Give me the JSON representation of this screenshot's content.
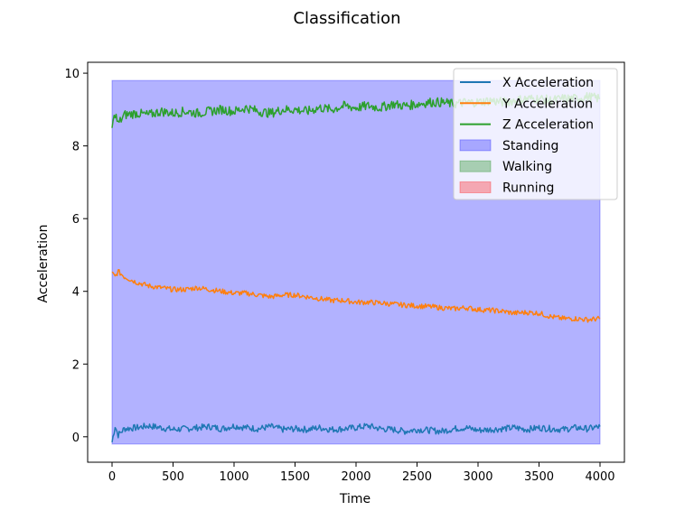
{
  "chart_data": {
    "type": "line",
    "title": "Classification",
    "xlabel": "Time",
    "ylabel": "Acceleration",
    "xlim": [
      -200,
      4200
    ],
    "ylim": [
      -0.7,
      10.3
    ],
    "x_ticks": [
      0,
      500,
      1000,
      1500,
      2000,
      2500,
      3000,
      3500,
      4000
    ],
    "y_ticks": [
      0,
      2,
      4,
      6,
      8,
      10
    ],
    "grid": false,
    "legend_position": "upper right",
    "series": [
      {
        "name": "X Acceleration",
        "color": "#1f77b4",
        "x": [
          0,
          25,
          50,
          100,
          200,
          300,
          400,
          500,
          600,
          700,
          800,
          900,
          1000,
          1100,
          1200,
          1300,
          1400,
          1500,
          1600,
          1700,
          1800,
          1900,
          2000,
          2100,
          2200,
          2300,
          2400,
          2500,
          2600,
          2700,
          2800,
          2900,
          3000,
          3100,
          3200,
          3300,
          3400,
          3500,
          3600,
          3700,
          3800,
          3900,
          4000
        ],
        "values": [
          -0.15,
          0.3,
          0.05,
          0.22,
          0.25,
          0.3,
          0.25,
          0.2,
          0.22,
          0.25,
          0.28,
          0.22,
          0.3,
          0.25,
          0.22,
          0.28,
          0.2,
          0.22,
          0.2,
          0.25,
          0.2,
          0.22,
          0.25,
          0.3,
          0.22,
          0.2,
          0.15,
          0.2,
          0.18,
          0.15,
          0.22,
          0.25,
          0.18,
          0.2,
          0.22,
          0.25,
          0.2,
          0.25,
          0.22,
          0.2,
          0.25,
          0.22,
          0.28
        ]
      },
      {
        "name": "Y Acceleration",
        "color": "#ff7f0e",
        "x": [
          0,
          25,
          50,
          100,
          200,
          300,
          400,
          500,
          600,
          700,
          800,
          900,
          1000,
          1100,
          1200,
          1300,
          1400,
          1500,
          1600,
          1700,
          1800,
          1900,
          2000,
          2100,
          2200,
          2300,
          2400,
          2500,
          2600,
          2700,
          2800,
          2900,
          3000,
          3100,
          3200,
          3300,
          3400,
          3500,
          3600,
          3700,
          3800,
          3900,
          4000
        ],
        "values": [
          4.5,
          4.4,
          4.55,
          4.4,
          4.25,
          4.15,
          4.1,
          4.05,
          4.05,
          4.1,
          4.05,
          4.0,
          3.95,
          3.95,
          3.9,
          3.85,
          3.9,
          3.9,
          3.85,
          3.8,
          3.75,
          3.75,
          3.7,
          3.7,
          3.68,
          3.65,
          3.62,
          3.6,
          3.58,
          3.55,
          3.52,
          3.55,
          3.5,
          3.48,
          3.45,
          3.4,
          3.42,
          3.4,
          3.3,
          3.25,
          3.25,
          3.22,
          3.25
        ]
      },
      {
        "name": "Z Acceleration",
        "color": "#2ca02c",
        "x": [
          0,
          25,
          50,
          100,
          200,
          300,
          400,
          500,
          600,
          700,
          800,
          900,
          1000,
          1100,
          1200,
          1300,
          1400,
          1500,
          1600,
          1700,
          1800,
          1900,
          2000,
          2100,
          2200,
          2300,
          2400,
          2500,
          2600,
          2700,
          2800,
          2900,
          3000,
          3100,
          3200,
          3300,
          3400,
          3500,
          3600,
          3700,
          3800,
          3900,
          4000
        ],
        "values": [
          8.5,
          8.9,
          8.6,
          8.85,
          8.9,
          8.85,
          8.95,
          8.9,
          8.95,
          8.9,
          8.95,
          9.0,
          8.95,
          9.05,
          8.95,
          8.9,
          9.0,
          9.0,
          8.95,
          9.05,
          9.0,
          9.1,
          9.05,
          9.1,
          9.05,
          9.15,
          9.1,
          9.15,
          9.2,
          9.2,
          9.15,
          9.2,
          9.2,
          9.25,
          9.2,
          9.25,
          9.3,
          9.3,
          9.25,
          9.3,
          9.3,
          9.35,
          9.3
        ]
      }
    ],
    "regions": [
      {
        "name": "Standing",
        "color": "#0000ff",
        "x_range": [
          0,
          4000
        ],
        "y_range": [
          -0.2,
          9.8
        ]
      },
      {
        "name": "Walking",
        "color": "#008000",
        "x_range": [],
        "y_range": []
      },
      {
        "name": "Running",
        "color": "#ff0000",
        "x_range": [],
        "y_range": []
      }
    ]
  }
}
